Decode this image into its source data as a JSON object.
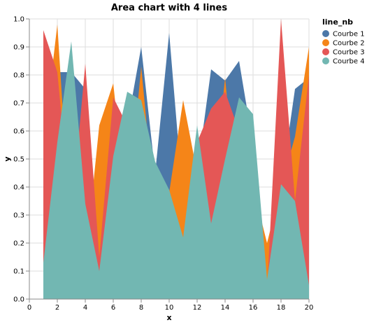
{
  "chart_data": {
    "type": "area",
    "title": "Area chart with 4 lines",
    "xlabel": "x",
    "ylabel": "y",
    "xlim": [
      0,
      20
    ],
    "ylim": [
      0,
      1
    ],
    "x_ticks": [
      "0",
      "2",
      "4",
      "6",
      "8",
      "10",
      "12",
      "14",
      "16",
      "18",
      "20"
    ],
    "y_ticks": [
      "0.0",
      "0.1",
      "0.2",
      "0.3",
      "0.4",
      "0.5",
      "0.6",
      "0.7",
      "0.8",
      "0.9",
      "1.0"
    ],
    "grid": true,
    "stacked": false,
    "legend": {
      "title": "line_nb",
      "placement": "top-right"
    },
    "x": [
      1,
      2,
      3,
      4,
      5,
      6,
      7,
      8,
      9,
      10,
      11,
      12,
      13,
      14,
      15,
      16,
      17,
      18,
      19,
      20
    ],
    "series": [
      {
        "name": "Courbe 1",
        "color": "#4c78a8",
        "values": [
          0.5,
          0.81,
          0.81,
          0.75,
          0.12,
          0.5,
          0.62,
          0.9,
          0.45,
          0.95,
          0.35,
          0.45,
          0.82,
          0.78,
          0.85,
          0.55,
          0.12,
          0.4,
          0.75,
          0.79
        ]
      },
      {
        "name": "Courbe 2",
        "color": "#f58518",
        "values": [
          0.55,
          0.98,
          0.2,
          0.13,
          0.62,
          0.77,
          0.3,
          0.83,
          0.3,
          0.38,
          0.71,
          0.45,
          0.3,
          0.79,
          0.25,
          0.4,
          0.2,
          0.4,
          0.58,
          0.9
        ]
      },
      {
        "name": "Courbe 3",
        "color": "#e45756",
        "values": [
          0.96,
          0.81,
          0.29,
          0.84,
          0.15,
          0.72,
          0.62,
          0.7,
          0.45,
          0.33,
          0.2,
          0.56,
          0.68,
          0.74,
          0.6,
          0.56,
          0.03,
          1.0,
          0.35,
          0.8
        ]
      },
      {
        "name": "Courbe 4",
        "color": "#72b7b2",
        "values": [
          0.13,
          0.56,
          0.92,
          0.34,
          0.1,
          0.51,
          0.74,
          0.71,
          0.49,
          0.39,
          0.22,
          0.62,
          0.27,
          0.5,
          0.72,
          0.66,
          0.07,
          0.41,
          0.35,
          0.05
        ]
      }
    ]
  }
}
